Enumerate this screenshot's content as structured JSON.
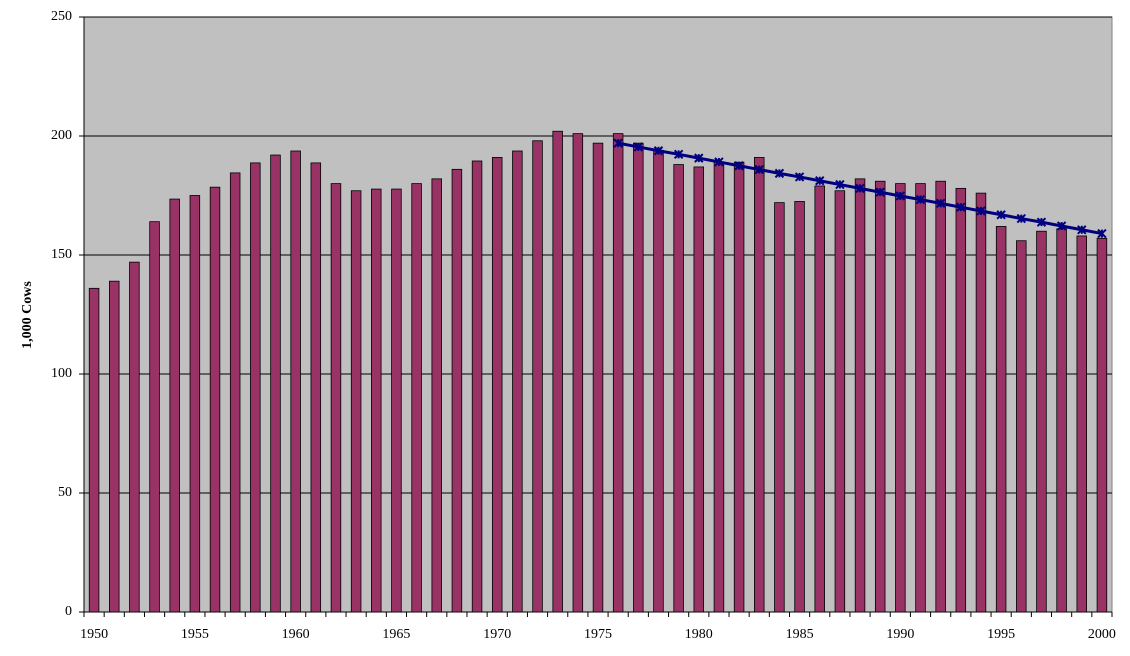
{
  "chart_data": {
    "type": "bar",
    "y_label": "1,000 Cows",
    "categories": [
      "1950",
      null,
      null,
      null,
      null,
      "1955",
      null,
      null,
      null,
      null,
      "1960",
      null,
      null,
      null,
      null,
      "1965",
      null,
      null,
      null,
      null,
      "1970",
      null,
      null,
      null,
      null,
      "1975",
      null,
      null,
      null,
      null,
      "1980",
      null,
      null,
      null,
      null,
      "1985",
      null,
      null,
      null,
      null,
      "1990",
      null,
      null,
      null,
      null,
      "1995",
      null,
      null,
      null,
      null,
      "2000"
    ],
    "series": [
      {
        "type": "bar",
        "color": "#993366",
        "values": [
          136,
          139,
          147,
          164,
          173.5,
          175,
          178.5,
          184.5,
          188.7,
          192,
          193.7,
          188.7,
          180,
          177,
          177.7,
          177.7,
          180,
          182,
          186,
          189.5,
          191,
          193.7,
          198,
          202,
          201,
          197,
          201,
          197,
          194,
          188,
          187,
          189,
          189,
          191,
          172,
          172.5,
          179,
          177,
          182,
          181,
          180,
          180,
          181,
          178,
          176,
          162,
          156,
          160,
          161,
          158,
          157
        ]
      },
      {
        "type": "line",
        "color": "#000080",
        "values": [
          null,
          null,
          null,
          null,
          null,
          null,
          null,
          null,
          null,
          null,
          null,
          null,
          null,
          null,
          null,
          null,
          null,
          null,
          null,
          null,
          null,
          null,
          null,
          null,
          null,
          null,
          197,
          195.4,
          193.8,
          192.3,
          190.7,
          189.1,
          187.5,
          185.9,
          184.3,
          182.8,
          181.2,
          179.6,
          178,
          176.4,
          174.8,
          173.3,
          171.7,
          170.1,
          168.5,
          166.9,
          165.3,
          163.8,
          162.2,
          160.6,
          159
        ]
      }
    ],
    "ylim": [
      0,
      250
    ],
    "yticks": [
      0,
      50,
      100,
      150,
      200,
      250
    ],
    "grid": true,
    "background": "#c0c0c0"
  }
}
